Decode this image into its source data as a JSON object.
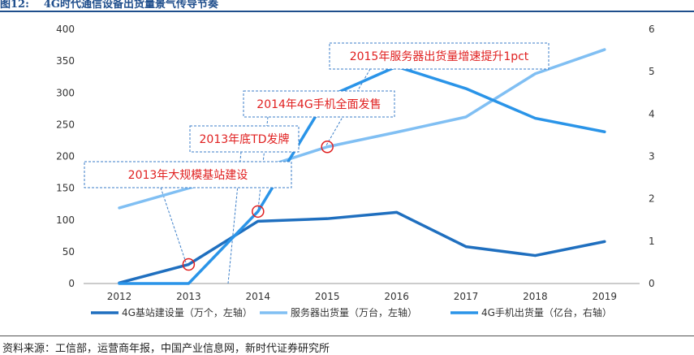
{
  "figure": {
    "label": "图12:",
    "title": "4G时代通信设备出货量景气传导节奏",
    "source": "资料来源：工信部，运营商年报，中国产业信息网，新时代证券研究所"
  },
  "chart_data": {
    "type": "line",
    "categories": [
      "2012",
      "2013",
      "2014",
      "2015",
      "2016",
      "2017",
      "2018",
      "2019"
    ],
    "y_left": {
      "lim": [
        0,
        400
      ],
      "ticks": [
        0,
        50,
        100,
        150,
        200,
        250,
        300,
        350,
        400
      ]
    },
    "y_right": {
      "lim": [
        0,
        6
      ],
      "ticks": [
        0,
        1,
        2,
        3,
        4,
        5,
        6
      ]
    },
    "grid": false,
    "legend_position": "bottom",
    "series": [
      {
        "name": "4G基站建设量（万个，左轴）",
        "axis": "left",
        "color": "#1f6fbf",
        "width": 3.5,
        "values": [
          1,
          30,
          98,
          102,
          112,
          58,
          44,
          66
        ]
      },
      {
        "name": "服务器出货量（万台，左轴）",
        "axis": "left",
        "color": "#80bff3",
        "width": 3.5,
        "values": [
          119,
          150,
          180,
          215,
          238,
          262,
          330,
          368
        ]
      },
      {
        "name": "4G手机出货量（亿台，右轴）",
        "axis": "right",
        "color": "#2a94e8",
        "width": 3.5,
        "values": [
          0,
          0,
          1.7,
          4.4,
          5.12,
          4.6,
          3.9,
          3.58
        ]
      }
    ],
    "annotations": [
      {
        "text": "2013年大规模基站建设",
        "series": 0,
        "point_index": 1
      },
      {
        "text": "2013年底TD发牌",
        "series": 2,
        "point_index": 1.6
      },
      {
        "text": "2014年4G手机全面发售",
        "series": 2,
        "point_index": 2
      },
      {
        "text": "2015年服务器出货量增速提升1pct",
        "series": 1,
        "point_index": 3
      }
    ]
  }
}
